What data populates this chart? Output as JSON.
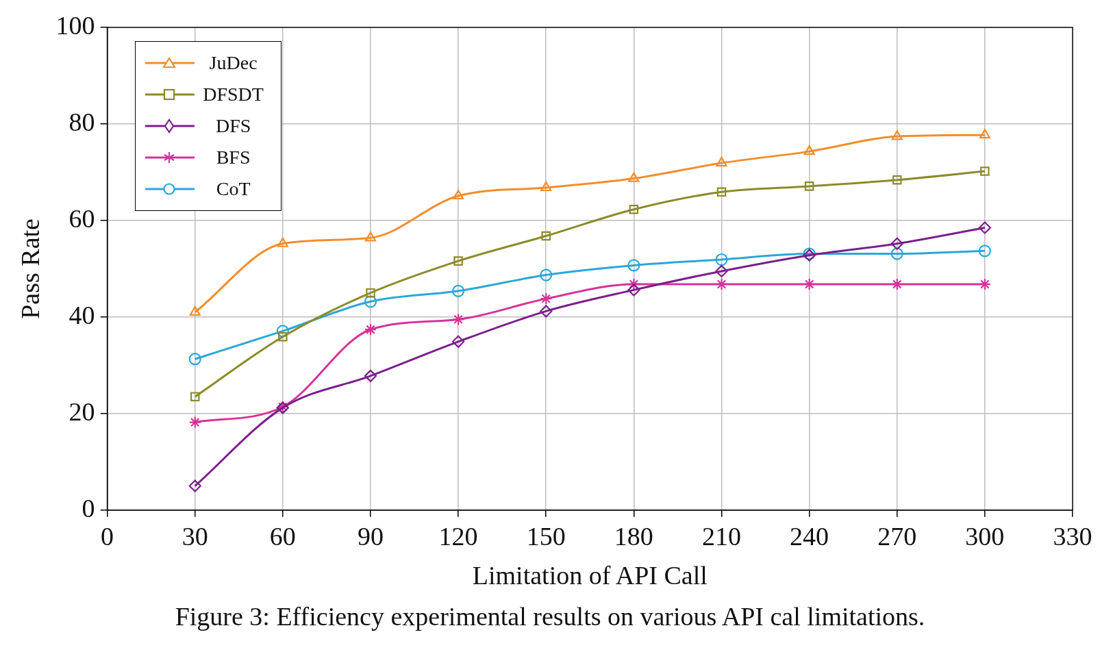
{
  "chart_data": {
    "type": "line",
    "xlabel": "Limitation of API Call",
    "ylabel": "Pass Rate",
    "annotations": [
      "Figure 3: Efficiency experimental results on various API cal limitations."
    ],
    "x": [
      30,
      60,
      90,
      120,
      150,
      180,
      210,
      240,
      270,
      300
    ],
    "xlim": [
      0,
      330
    ],
    "xticks": [
      0,
      30,
      60,
      90,
      120,
      150,
      180,
      210,
      240,
      270,
      300,
      330
    ],
    "ylim": [
      0,
      100
    ],
    "yticks": [
      0,
      20,
      40,
      60,
      80,
      100
    ],
    "grid": true,
    "legend": "top left",
    "line_style": "solid",
    "series": [
      {
        "name": "JuDec",
        "color": "#f28e2b",
        "marker": "triangle",
        "values": [
          41,
          55.2,
          56.4,
          65.1,
          66.8,
          68.7,
          71.9,
          74.3,
          77.4,
          77.7
        ]
      },
      {
        "name": "DFSDT",
        "color": "#8c8a2a",
        "marker": "square",
        "values": [
          23.5,
          35.9,
          45,
          51.6,
          56.8,
          62.3,
          65.9,
          67.1,
          68.4,
          70.2
        ]
      },
      {
        "name": "DFS",
        "color": "#7b1f8c",
        "marker": "diamond",
        "values": [
          5,
          21.2,
          27.8,
          34.9,
          41.2,
          45.6,
          49.5,
          52.8,
          55.2,
          58.5
        ]
      },
      {
        "name": "BFS",
        "color": "#d6339a",
        "marker": "cross",
        "values": [
          18.2,
          21.4,
          37.4,
          39.5,
          43.8,
          46.8,
          46.8,
          46.8,
          46.8,
          46.8
        ]
      },
      {
        "name": "CoT",
        "color": "#2ba7d8",
        "marker": "circle",
        "values": [
          31.3,
          37.1,
          43.2,
          45.4,
          48.7,
          50.7,
          51.9,
          53.1,
          53.1,
          53.7
        ]
      }
    ]
  }
}
